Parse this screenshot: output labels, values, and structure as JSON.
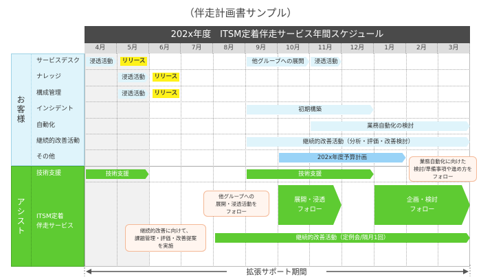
{
  "title": "（伴走計画書サンプル）",
  "header": "202x年度　ITSM定着伴走サービス年間スケジュール",
  "months": [
    "4月",
    "5月",
    "6月",
    "7月",
    "8月",
    "9月",
    "10月",
    "11月",
    "12月",
    "1月",
    "2月",
    "3月"
  ],
  "groups": {
    "customer": "お客様",
    "assist": "アシスト"
  },
  "rows": [
    "サービスデスク",
    "ナレッジ",
    "構成管理",
    "インシデント",
    "自動化",
    "継続的改善活動",
    "その他",
    "技術支援",
    "ITSM定着\n伴走サービス"
  ],
  "bars": [
    {
      "row": 0,
      "start": 0,
      "end": 1,
      "label": "浸透活動",
      "style": "light"
    },
    {
      "row": 0,
      "start": 1,
      "end": 1.85,
      "label": "リリース",
      "style": "release"
    },
    {
      "row": 0,
      "start": 5,
      "end": 7,
      "label": "他グループへの展開",
      "style": "light"
    },
    {
      "row": 0,
      "start": 7,
      "end": 8,
      "label": "浸透活動",
      "style": "light"
    },
    {
      "row": 1,
      "start": 1,
      "end": 2,
      "label": "浸透活動",
      "style": "light"
    },
    {
      "row": 1,
      "start": 2,
      "end": 2.85,
      "label": "リリース",
      "style": "release"
    },
    {
      "row": 2,
      "start": 1,
      "end": 2,
      "label": "浸透活動",
      "style": "light"
    },
    {
      "row": 2,
      "start": 2,
      "end": 2.85,
      "label": "リリース",
      "style": "release"
    },
    {
      "row": 3,
      "start": 5,
      "end": 9,
      "label": "初期構築",
      "style": "light"
    },
    {
      "row": 4,
      "start": 7,
      "end": 12,
      "label": "業務自動化の検討",
      "style": "light"
    },
    {
      "row": 5,
      "start": 5,
      "end": 12,
      "label": "継続的改善活動（分析・評価・改善検討）",
      "style": "light"
    },
    {
      "row": 6,
      "start": 6,
      "end": 10,
      "label": "202x年度予算計画",
      "style": "mid"
    },
    {
      "row": 7,
      "start": 0,
      "end": 2,
      "label": "技術支援",
      "style": "green"
    },
    {
      "row": 7,
      "start": 5,
      "end": 9,
      "label": "技術支援",
      "style": "green"
    }
  ],
  "big_arrows": [
    {
      "start": 6,
      "end": 8,
      "label": "展開・浸透\nフォロー"
    },
    {
      "start": 9,
      "end": 12,
      "label": "企画・検討\nフォロー"
    }
  ],
  "ongoing": {
    "start": 4,
    "end": 12,
    "label": "継続的改善活動（定例会/隔月1回）"
  },
  "callouts": [
    "他グループへの\n展開・浸透活動を\nフォロー",
    "継続的改善に向けて、\n課題管理・評価・改善提案\nを実施",
    "業務自動化に向けた\n検討/準備事項や進め方を\nフォロー"
  ],
  "footer": "拡張サポート期間",
  "colors": {
    "header": "#4a4a4a",
    "light": "#dff4fb",
    "mid": "#99d3f7",
    "green": "#5ecb32",
    "release": "#fff21a",
    "callout_border": "#f4b896"
  }
}
